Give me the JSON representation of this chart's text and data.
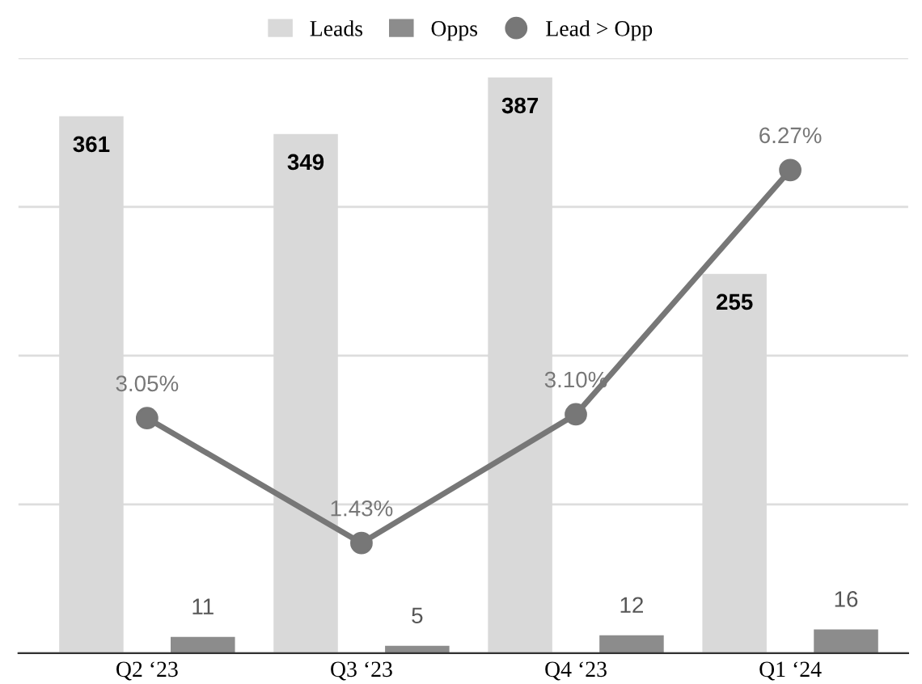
{
  "chart_data": {
    "type": "bar",
    "categories": [
      "Q2 ‘23",
      "Q3 ‘23",
      "Q4 ‘23",
      "Q1 ‘24"
    ],
    "series": [
      {
        "name": "Leads",
        "color": "#d9d9d9",
        "values": [
          361,
          349,
          387,
          255
        ]
      },
      {
        "name": "Opps",
        "color": "#8c8c8c",
        "values": [
          11,
          5,
          12,
          16
        ]
      },
      {
        "name": "Lead > Opp",
        "type": "line",
        "axis": "y2",
        "color": "#777777",
        "values": [
          3.05,
          1.43,
          3.1,
          6.27
        ],
        "value_labels": [
          "3.05%",
          "1.43%",
          "3.10%",
          "6.27%"
        ],
        "marker": "circle"
      }
    ],
    "ylim": [
      0,
      400
    ],
    "yticks": [
      {
        "value": 0,
        "label": null
      },
      {
        "value": 100,
        "label": null
      },
      {
        "value": 200,
        "label": null
      },
      {
        "value": 300,
        "label": null
      },
      {
        "value": 400,
        "label": null
      }
    ],
    "tick_labels": "x",
    "grid": "y",
    "legend": "top",
    "data_labels": true
  }
}
